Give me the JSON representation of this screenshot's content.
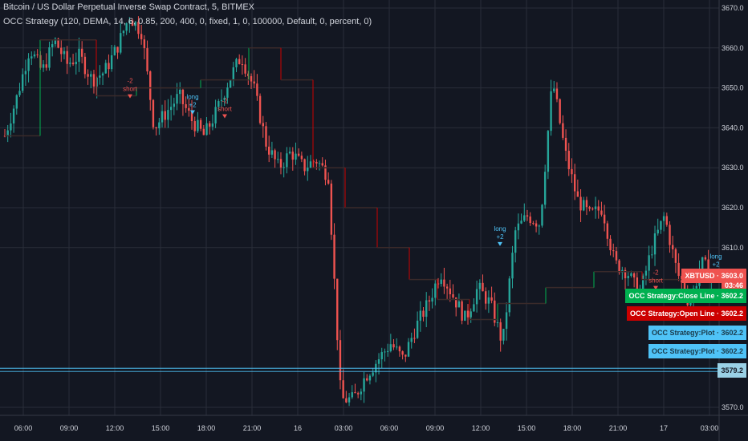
{
  "header": {
    "title": "Bitcoin / US Dollar Perpetual Inverse Swap Contract, 5, BITMEX",
    "indicator": "OCC Strategy (120, DEMA, 14, 6, 0.85, 200, 400, 0, fixed, 1, 0, 100000, Default, 0, percent, 0)"
  },
  "colors": {
    "background": "#131722",
    "grid": "#2a2e39",
    "up": "#26a69a",
    "down": "#ef5350",
    "close_line": "#00b050",
    "open_line": "#cc0000",
    "plot": "#4fc3f7"
  },
  "chart_data": {
    "type": "candlestick",
    "title": "Bitcoin / US Dollar Perpetual Inverse Swap Contract, 5, BITMEX",
    "x_ticks": [
      "06:00",
      "09:00",
      "12:00",
      "15:00",
      "18:00",
      "21:00",
      "16",
      "03:00",
      "06:00",
      "09:00",
      "12:00",
      "15:00",
      "18:00",
      "21:00",
      "17",
      "03:00"
    ],
    "y_ticks": [
      "3670.0",
      "3660.0",
      "3650.0",
      "3640.0",
      "3630.0",
      "3620.0",
      "3610.0",
      "3570.0"
    ],
    "ylim": [
      3568,
      3672
    ],
    "series_close_approx": [
      [
        0,
        3638
      ],
      [
        1,
        3648
      ],
      [
        2,
        3660
      ],
      [
        3,
        3654
      ],
      [
        4,
        3662
      ],
      [
        5,
        3656
      ],
      [
        6,
        3658
      ],
      [
        7,
        3652
      ],
      [
        8,
        3654
      ],
      [
        9,
        3660
      ],
      [
        10,
        3668
      ],
      [
        11,
        3664
      ],
      [
        12,
        3640
      ],
      [
        13,
        3644
      ],
      [
        14,
        3648
      ],
      [
        15,
        3642
      ],
      [
        16,
        3638
      ],
      [
        17,
        3644
      ],
      [
        18,
        3652
      ],
      [
        19,
        3658
      ],
      [
        20,
        3650
      ],
      [
        21,
        3636
      ],
      [
        22,
        3630
      ],
      [
        23,
        3634
      ],
      [
        24,
        3630
      ],
      [
        25,
        3632
      ],
      [
        26,
        3628
      ],
      [
        27,
        3572
      ],
      [
        28,
        3572
      ],
      [
        29,
        3578
      ],
      [
        30,
        3582
      ],
      [
        31,
        3586
      ],
      [
        32,
        3582
      ],
      [
        33,
        3590
      ],
      [
        34,
        3596
      ],
      [
        35,
        3604
      ],
      [
        36,
        3598
      ],
      [
        37,
        3592
      ],
      [
        38,
        3600
      ],
      [
        39,
        3596
      ],
      [
        40,
        3586
      ],
      [
        41,
        3614
      ],
      [
        42,
        3618
      ],
      [
        43,
        3616
      ],
      [
        44,
        3652
      ],
      [
        45,
        3634
      ],
      [
        46,
        3622
      ],
      [
        47,
        3618
      ],
      [
        48,
        3620
      ],
      [
        49,
        3606
      ],
      [
        50,
        3604
      ],
      [
        51,
        3598
      ],
      [
        52,
        3610
      ],
      [
        53,
        3618
      ],
      [
        54,
        3604
      ],
      [
        55,
        3596
      ],
      [
        56,
        3606
      ],
      [
        57,
        3603
      ]
    ],
    "signals": [
      {
        "label": "-2 short",
        "type": "short"
      },
      {
        "label": "long +2",
        "type": "long"
      },
      {
        "label": "-2 short",
        "type": "short"
      },
      {
        "label": "long +2",
        "type": "long"
      },
      {
        "label": "-2 short",
        "type": "short"
      },
      {
        "label": "long +2",
        "type": "long"
      }
    ],
    "price_tags": [
      {
        "label": "XBTUSD · 3603.0",
        "value": 3603.0
      },
      {
        "label": "03:46",
        "value": 3600.6
      },
      {
        "label": "OCC Strategy:Close Line · 3602.2",
        "value": 3598.0
      },
      {
        "label": "OCC Strategy:Open Line · 3602.2",
        "value": 3593.4
      },
      {
        "label": "OCC Strategy:Plot · 3602.2",
        "value": 3588.7
      },
      {
        "label": "OCC Strategy:Plot · 3602.2",
        "value": 3584.0
      },
      {
        "label": "3579.2",
        "value": 3579.2
      }
    ],
    "horizontal_line": 3579.2
  }
}
